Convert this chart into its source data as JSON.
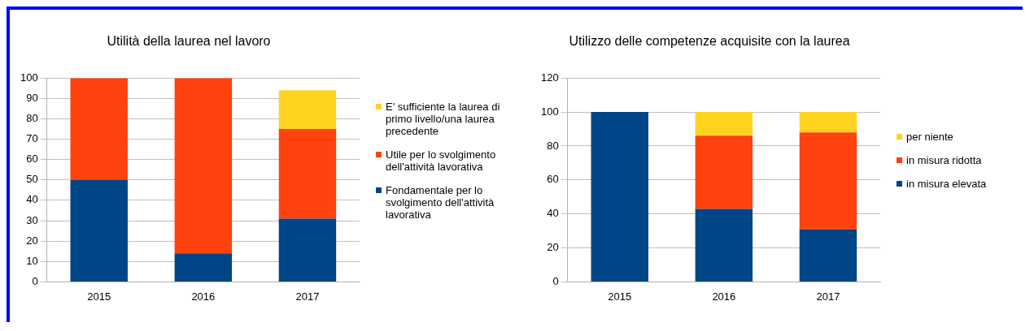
{
  "chart_data": [
    {
      "type": "bar",
      "title": "Utilità della laurea nel lavoro",
      "categories": [
        "2015",
        "2016",
        "2017"
      ],
      "stacked": true,
      "ylim": [
        0,
        100
      ],
      "yticks": [
        0,
        10,
        20,
        30,
        40,
        50,
        60,
        70,
        80,
        90,
        100
      ],
      "grid": "y",
      "legend": "right",
      "series": [
        {
          "name": "Fondamentale per lo svolgimento dell'attività lavorativa",
          "color": "#004586",
          "values": [
            50,
            14,
            31
          ]
        },
        {
          "name": "Utile per lo svolgimento dell'attività lavorativa",
          "color": "#ff420e",
          "values": [
            50,
            86,
            44
          ]
        },
        {
          "name": "E' sufficiente la laurea di primo livello/una laurea precedente",
          "color": "#ffd320",
          "values": [
            null,
            null,
            19
          ]
        }
      ]
    },
    {
      "type": "bar",
      "title": "Utilizzo delle competenze acquisite con la laurea",
      "categories": [
        "2015",
        "2016",
        "2017"
      ],
      "stacked": true,
      "ylim": [
        0,
        120
      ],
      "yticks": [
        0,
        20,
        40,
        60,
        80,
        100,
        120
      ],
      "grid": "y",
      "legend": "right",
      "series": [
        {
          "name": "in misura elevata",
          "color": "#004586",
          "values": [
            100,
            43,
            31
          ]
        },
        {
          "name": "in misura ridotta",
          "color": "#ff420e",
          "values": [
            null,
            43,
            57
          ]
        },
        {
          "name": "per niente",
          "color": "#ffd320",
          "values": [
            null,
            14,
            12
          ]
        }
      ]
    }
  ]
}
